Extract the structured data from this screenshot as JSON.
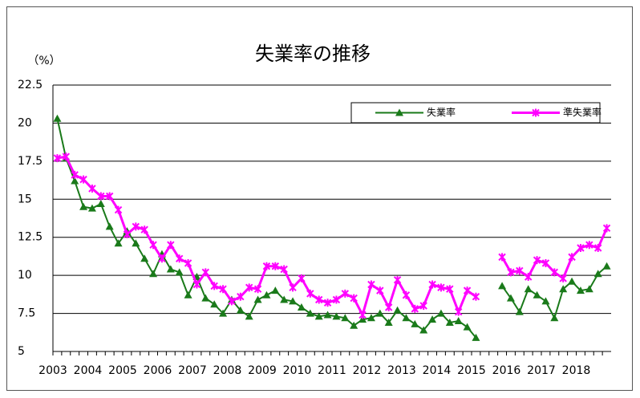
{
  "chart_data": {
    "type": "line",
    "title": "失業率の推移",
    "y_label": "（%）",
    "categories": [
      "2003",
      null,
      null,
      null,
      "2004",
      null,
      null,
      null,
      "2005",
      null,
      null,
      null,
      "2006",
      null,
      null,
      null,
      "2007",
      null,
      null,
      null,
      "2008",
      null,
      null,
      null,
      "2009",
      null,
      null,
      null,
      "2010",
      null,
      null,
      null,
      "2011",
      null,
      null,
      null,
      "2012",
      null,
      null,
      null,
      "2013",
      null,
      null,
      null,
      "2014",
      null,
      null,
      null,
      "2015",
      null,
      null,
      null,
      "2016",
      null,
      null,
      null,
      "2017",
      null,
      null,
      null,
      "2018",
      null,
      null,
      null
    ],
    "series": [
      {
        "name": "失業率",
        "color": "#1a7a1a",
        "marker": "triangle",
        "values": [
          20.3,
          17.7,
          16.2,
          14.5,
          14.4,
          14.7,
          13.2,
          12.1,
          12.9,
          12.1,
          11.1,
          10.1,
          11.4,
          10.4,
          10.2,
          8.7,
          9.9,
          8.5,
          8.1,
          7.5,
          8.4,
          7.7,
          7.3,
          8.4,
          8.7,
          9.0,
          8.4,
          8.3,
          7.9,
          7.5,
          7.3,
          7.4,
          7.3,
          7.2,
          6.7,
          7.1,
          7.2,
          7.5,
          6.9,
          7.7,
          7.2,
          6.8,
          6.4,
          7.1,
          7.5,
          6.9,
          7.0,
          6.6,
          5.9,
          null,
          null,
          9.3,
          8.5,
          7.6,
          9.1,
          8.7,
          8.3,
          7.2,
          9.1,
          9.6,
          9.0,
          9.1,
          10.1,
          10.6
        ]
      },
      {
        "name": "準失業率",
        "color": "#ff00ff",
        "marker": "x",
        "values": [
          17.7,
          17.8,
          16.6,
          16.3,
          15.7,
          15.2,
          15.2,
          14.3,
          12.7,
          13.2,
          13.0,
          12.0,
          11.1,
          12.0,
          11.1,
          10.8,
          9.4,
          10.2,
          9.3,
          9.1,
          8.3,
          8.6,
          9.2,
          9.1,
          10.6,
          10.6,
          10.4,
          9.2,
          9.8,
          8.8,
          8.4,
          8.2,
          8.4,
          8.8,
          8.5,
          7.4,
          9.4,
          9.0,
          7.9,
          9.7,
          8.7,
          7.8,
          8.0,
          9.4,
          9.2,
          9.1,
          7.6,
          9.0,
          8.6,
          null,
          null,
          11.2,
          10.2,
          10.3,
          9.9,
          11.0,
          10.8,
          10.2,
          9.8,
          11.2,
          11.8,
          12.0,
          11.8,
          13.1
        ]
      }
    ],
    "ylim": [
      5,
      22.5
    ],
    "yticks": [
      5,
      7.5,
      10,
      12.5,
      15,
      17.5,
      20,
      22.5
    ],
    "grid": true,
    "legend": "top-right"
  }
}
